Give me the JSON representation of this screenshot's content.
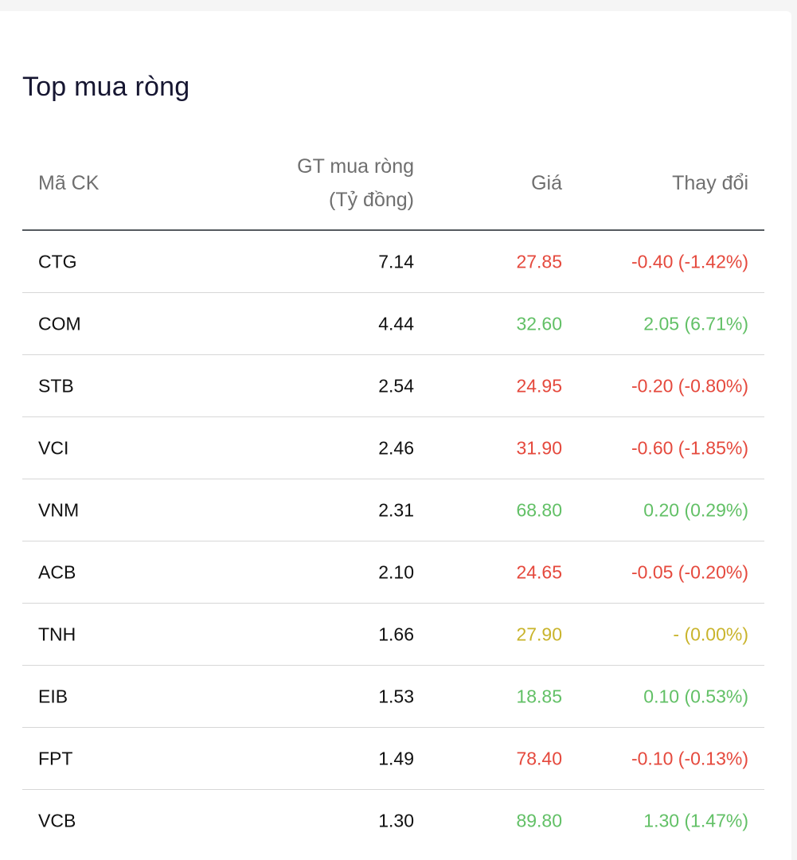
{
  "title": "Top mua ròng",
  "columns": {
    "symbol": "Mã CK",
    "net_buy_line1": "GT mua ròng",
    "net_buy_line2": "(Tỷ đồng)",
    "price": "Giá",
    "change": "Thay đổi"
  },
  "colors": {
    "up": "#62c066",
    "down": "#e5493d",
    "flat": "#c9b42c"
  },
  "rows": [
    {
      "symbol": "CTG",
      "net_buy": "7.14",
      "price": "27.85",
      "change": "-0.40 (-1.42%)",
      "trend": "down"
    },
    {
      "symbol": "COM",
      "net_buy": "4.44",
      "price": "32.60",
      "change": "2.05 (6.71%)",
      "trend": "up"
    },
    {
      "symbol": "STB",
      "net_buy": "2.54",
      "price": "24.95",
      "change": "-0.20 (-0.80%)",
      "trend": "down"
    },
    {
      "symbol": "VCI",
      "net_buy": "2.46",
      "price": "31.90",
      "change": "-0.60 (-1.85%)",
      "trend": "down"
    },
    {
      "symbol": "VNM",
      "net_buy": "2.31",
      "price": "68.80",
      "change": "0.20 (0.29%)",
      "trend": "up"
    },
    {
      "symbol": "ACB",
      "net_buy": "2.10",
      "price": "24.65",
      "change": "-0.05 (-0.20%)",
      "trend": "down"
    },
    {
      "symbol": "TNH",
      "net_buy": "1.66",
      "price": "27.90",
      "change": "- (0.00%)",
      "trend": "flat"
    },
    {
      "symbol": "EIB",
      "net_buy": "1.53",
      "price": "18.85",
      "change": "0.10 (0.53%)",
      "trend": "up"
    },
    {
      "symbol": "FPT",
      "net_buy": "1.49",
      "price": "78.40",
      "change": "-0.10 (-0.13%)",
      "trend": "down"
    },
    {
      "symbol": "VCB",
      "net_buy": "1.30",
      "price": "89.80",
      "change": "1.30 (1.47%)",
      "trend": "up"
    }
  ]
}
